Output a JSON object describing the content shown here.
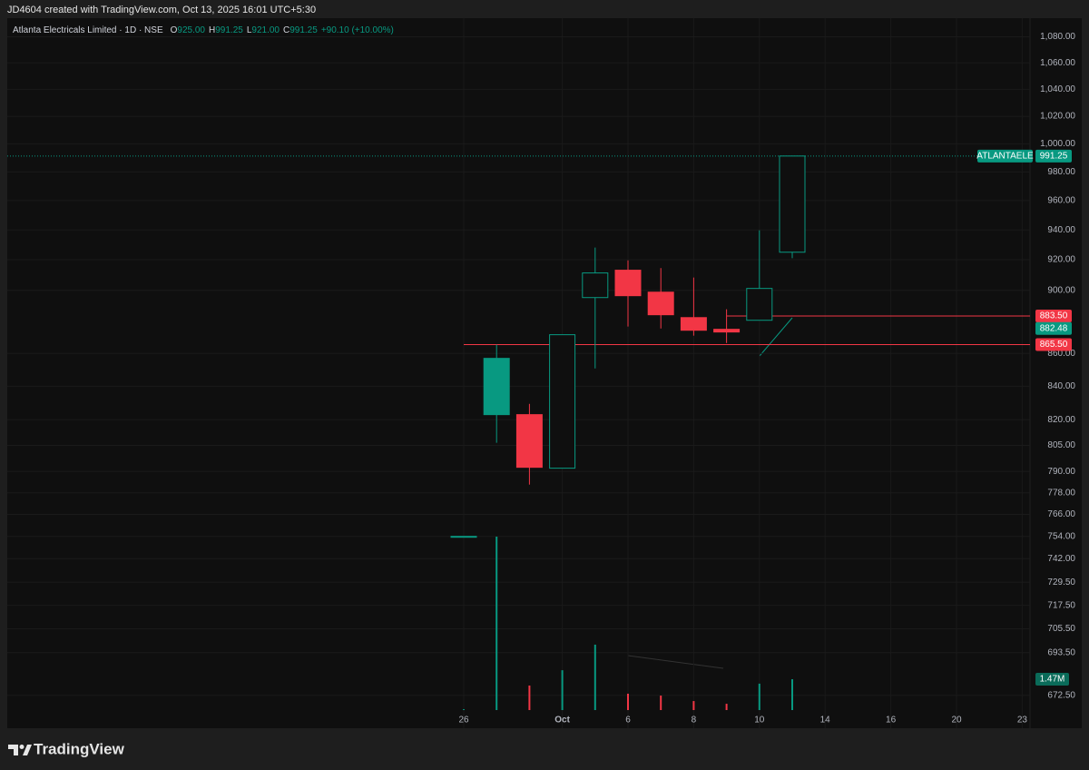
{
  "header": {
    "caption": "JD4604 created with TradingView.com, Oct 13, 2025 16:01 UTC+5:30"
  },
  "footer": {
    "brand": "TradingView"
  },
  "chart_data": {
    "type": "candlestick",
    "title": "Atlanta Electricals Limited · 1D · NSE",
    "ohlc_legend": [
      {
        "key": "O",
        "value": "925.00"
      },
      {
        "key": "H",
        "value": "991.25"
      },
      {
        "key": "L",
        "value": "921.00"
      },
      {
        "key": "C",
        "value": "991.25"
      }
    ],
    "change": "+90.10 (+10.00%)",
    "x_labels": [
      "26",
      "Oct",
      "6",
      "8",
      "10",
      "14",
      "16",
      "20",
      "23"
    ],
    "open": [
      754,
      857,
      823,
      791.9,
      895.3,
      913.1,
      898.8,
      882.5,
      875.1,
      880.8,
      925
    ],
    "high": [
      754,
      865.5,
      829.4,
      871.7,
      928.1,
      919.6,
      914.5,
      908.3,
      887.8,
      939.7,
      991.25
    ],
    "low": [
      754,
      806.5,
      782.6,
      791.9,
      850.8,
      876.8,
      875.6,
      871.1,
      866.5,
      880.8,
      921
    ],
    "close": [
      754,
      823,
      792.4,
      871.7,
      911.3,
      896.5,
      884.3,
      874.5,
      873.4,
      901.2,
      991.25
    ],
    "volume": [
      40000,
      8270000,
      1170000,
      1900000,
      3120000,
      780000,
      690000,
      430000,
      300000,
      1260000,
      1470000
    ],
    "volume_label": "1.47M",
    "up_color": "#089981",
    "down_color": "#f23645",
    "log_scale": true,
    "grid": true,
    "ylim": [
      656.8,
      1094.6
    ],
    "yticks": [
      {
        "value": 1080,
        "label": "1,080.00"
      },
      {
        "value": 1060,
        "label": "1,060.00"
      },
      {
        "value": 1040,
        "label": "1,040.00"
      },
      {
        "value": 1020,
        "label": "1,020.00"
      },
      {
        "value": 1000,
        "label": "1,000.00"
      },
      {
        "value": 980,
        "label": "980.00"
      },
      {
        "value": 960,
        "label": "960.00"
      },
      {
        "value": 940,
        "label": "940.00"
      },
      {
        "value": 920,
        "label": "920.00"
      },
      {
        "value": 900,
        "label": "900.00"
      },
      {
        "value": 860,
        "label": "860.00"
      },
      {
        "value": 840,
        "label": "840.00"
      },
      {
        "value": 820,
        "label": "820.00"
      },
      {
        "value": 805,
        "label": "805.00"
      },
      {
        "value": 790,
        "label": "790.00"
      },
      {
        "value": 778,
        "label": "778.00"
      },
      {
        "value": 766,
        "label": "766.00"
      },
      {
        "value": 754,
        "label": "754.00"
      },
      {
        "value": 742,
        "label": "742.00"
      },
      {
        "value": 729.5,
        "label": "729.50"
      },
      {
        "value": 717.5,
        "label": "717.50"
      },
      {
        "value": 705.5,
        "label": "705.50"
      },
      {
        "value": 693.5,
        "label": "693.50"
      },
      {
        "value": 672.5,
        "label": "672.50"
      }
    ],
    "symbol": "ATLANTAELE",
    "last_price": {
      "value": 991.25,
      "label": "991.25"
    },
    "levels": [
      {
        "value": 883.5,
        "label": "883.50"
      },
      {
        "value": 865.5,
        "label": "865.50"
      }
    ],
    "indicator_price": {
      "value": 882.48,
      "label": "882.48"
    }
  }
}
